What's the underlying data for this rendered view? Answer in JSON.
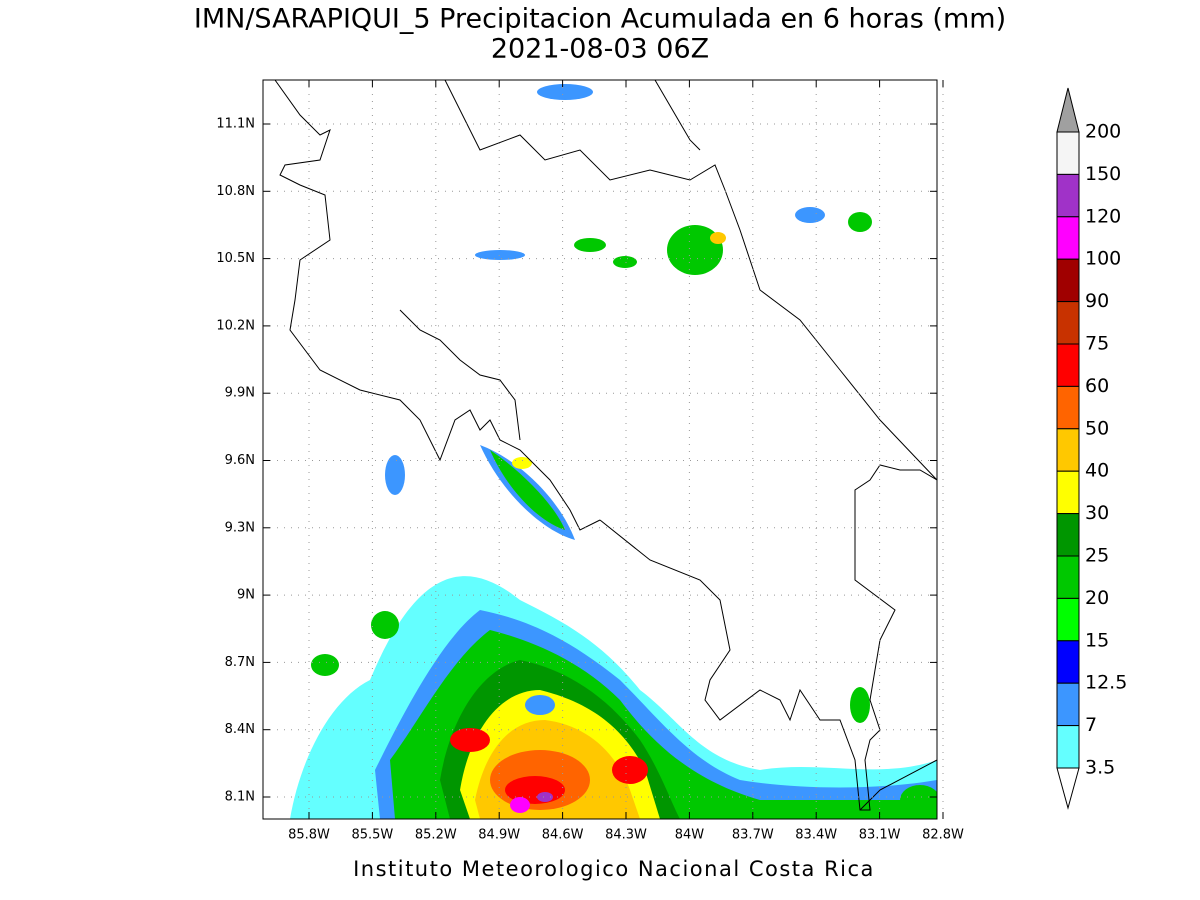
{
  "header": {
    "title": "IMN/SARAPIQUI_5 Precipitacion Acumulada en 6 horas (mm)",
    "subtitle": "2021-08-03 06Z"
  },
  "map": {
    "lat_labels": [
      "11.1N",
      "10.8N",
      "10.5N",
      "10.2N",
      "9.9N",
      "9.6N",
      "9.3N",
      "9N",
      "8.7N",
      "8.4N",
      "8.1N"
    ],
    "lon_labels": [
      "85.8W",
      "85.5W",
      "85.2W",
      "84.9W",
      "84.6W",
      "84.3W",
      "84W",
      "83.7W",
      "83.4W",
      "83.1W",
      "82.8W"
    ]
  },
  "colorbar": {
    "labels": [
      "200",
      "150",
      "120",
      "100",
      "90",
      "75",
      "60",
      "50",
      "40",
      "30",
      "25",
      "20",
      "15",
      "12.5",
      "7",
      "3.5"
    ],
    "colors": [
      "#a0a0a0",
      "#f5f5f5",
      "#a032c8",
      "#ff00ff",
      "#a00000",
      "#c83200",
      "#ff0000",
      "#ff6400",
      "#ffc800",
      "#ffff00",
      "#009600",
      "#00c800",
      "#00ff00",
      "#0000ff",
      "#3c96ff",
      "#64ffff",
      "#ffffff"
    ]
  },
  "footer": "Instituto Meteorologico Nacional Costa Rica"
}
